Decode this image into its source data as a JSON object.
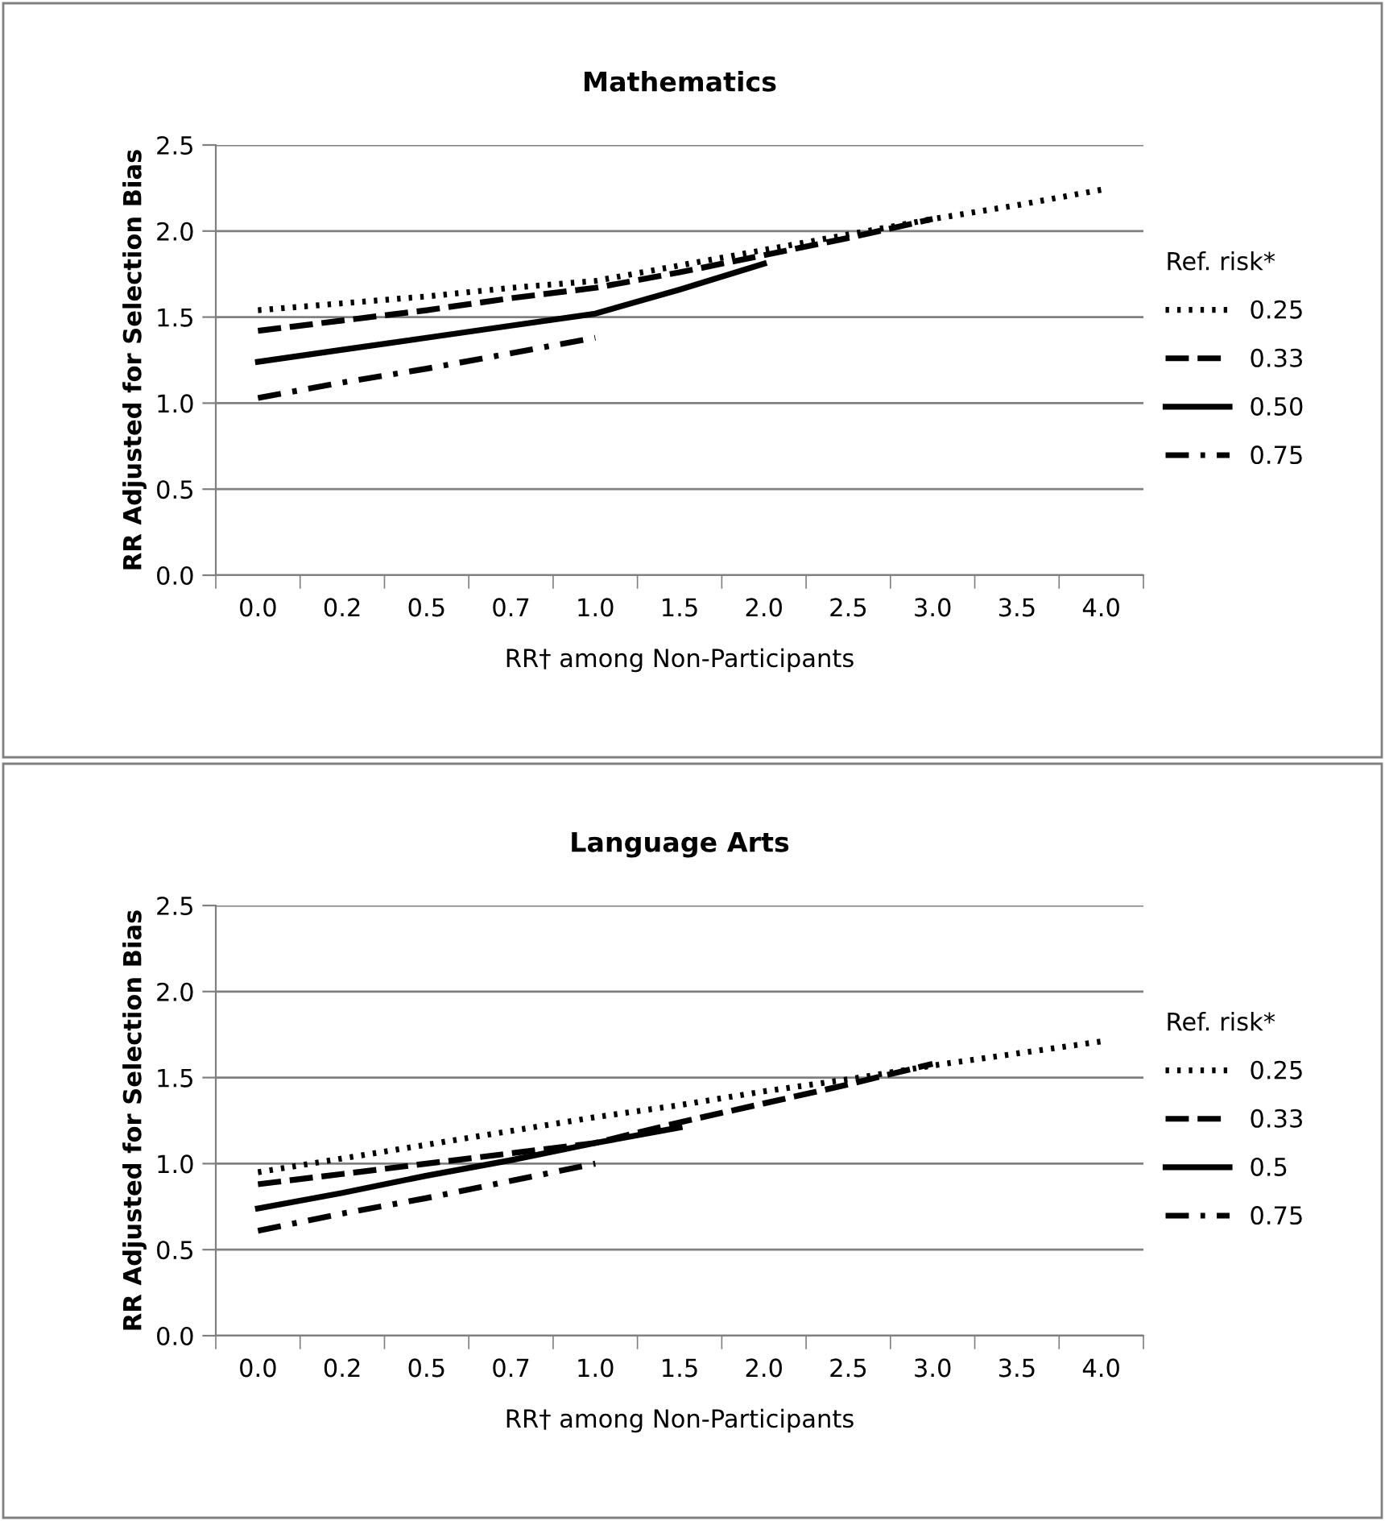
{
  "chart_data": [
    {
      "type": "line",
      "title": "Mathematics",
      "xlabel": "RR† among Non-Participants",
      "ylabel": "RR Adjusted for Selection Bias",
      "legend_title": "Ref. risk*",
      "legend": "right",
      "grid": "y",
      "ylim": [
        0,
        2.5
      ],
      "yticks": [
        {
          "value": 0,
          "label": "0.0"
        },
        {
          "value": 0.5,
          "label": "0.5"
        },
        {
          "value": 1,
          "label": "1.0"
        },
        {
          "value": 1.5,
          "label": "1.5"
        },
        {
          "value": 2,
          "label": "2.0"
        },
        {
          "value": 2.5,
          "label": "2.5"
        }
      ],
      "categories": [
        "0.0",
        "0.2",
        "0.5",
        "0.7",
        "1.0",
        "1.5",
        "2.0",
        "2.5",
        "3.0",
        "3.5",
        "4.0"
      ],
      "series": [
        {
          "name": "0.25",
          "color": "#000000",
          "line_style": "dotted",
          "values": [
            1.54,
            1.58,
            1.62,
            1.67,
            1.71,
            1.8,
            1.89,
            1.98,
            2.07,
            2.15,
            2.24
          ]
        },
        {
          "name": "0.33",
          "color": "#000000",
          "line_style": "dashed",
          "values": [
            1.42,
            1.48,
            1.54,
            1.61,
            1.67,
            1.76,
            1.86,
            1.96,
            2.07,
            null,
            null
          ]
        },
        {
          "name": "0.50",
          "color": "#000000",
          "line_style": "solid",
          "values": [
            1.24,
            1.31,
            1.38,
            1.45,
            1.52,
            1.66,
            1.81,
            null,
            null,
            null,
            null
          ]
        },
        {
          "name": "0.75",
          "color": "#000000",
          "line_style": "dashdot",
          "values": [
            1.03,
            1.12,
            1.2,
            1.29,
            1.38,
            null,
            null,
            null,
            null,
            null,
            null
          ]
        }
      ]
    },
    {
      "type": "line",
      "title": "Language Arts",
      "xlabel": "RR† among Non-Participants",
      "ylabel": "RR Adjusted for Selection Bias",
      "legend_title": "Ref. risk*",
      "legend": "right",
      "grid": "y",
      "ylim": [
        0,
        2.5
      ],
      "yticks": [
        {
          "value": 0,
          "label": "0.0"
        },
        {
          "value": 0.5,
          "label": "0.5"
        },
        {
          "value": 1,
          "label": "1.0"
        },
        {
          "value": 1.5,
          "label": "1.5"
        },
        {
          "value": 2,
          "label": "2.0"
        },
        {
          "value": 2.5,
          "label": "2.5"
        }
      ],
      "categories": [
        "0.0",
        "0.2",
        "0.5",
        "0.7",
        "1.0",
        "1.5",
        "2.0",
        "2.5",
        "3.0",
        "3.5",
        "4.0"
      ],
      "series": [
        {
          "name": "0.25",
          "color": "#000000",
          "line_style": "dotted",
          "values": [
            0.95,
            1.03,
            1.11,
            1.19,
            1.27,
            1.34,
            1.42,
            1.49,
            1.57,
            1.64,
            1.71
          ]
        },
        {
          "name": "0.33",
          "color": "#000000",
          "line_style": "dashed",
          "values": [
            0.88,
            0.94,
            1.0,
            1.06,
            1.12,
            1.24,
            1.35,
            1.46,
            1.58,
            null,
            null
          ]
        },
        {
          "name": "0.5",
          "color": "#000000",
          "line_style": "solid",
          "values": [
            0.74,
            0.83,
            0.93,
            1.02,
            1.12,
            1.21,
            null,
            null,
            null,
            null,
            null
          ]
        },
        {
          "name": "0.75",
          "color": "#000000",
          "line_style": "dashdot",
          "values": [
            0.61,
            0.71,
            0.8,
            0.9,
            1.0,
            null,
            null,
            null,
            null,
            null,
            null
          ]
        }
      ]
    }
  ]
}
